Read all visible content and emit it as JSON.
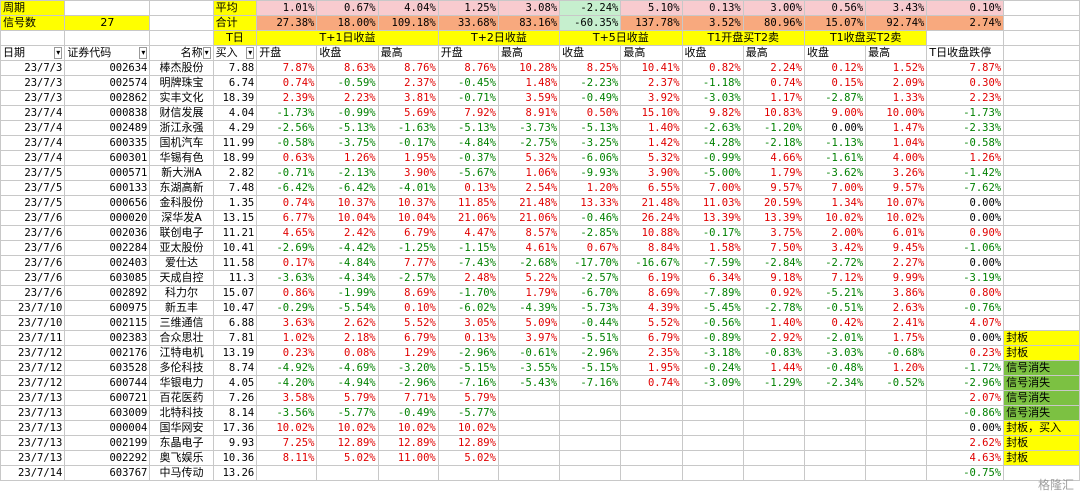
{
  "top": {
    "row1": {
      "a": "周期",
      "f": "平均",
      "vals": [
        "1.01%",
        "0.67%",
        "4.04%",
        "1.25%",
        "3.08%",
        "-2.24%",
        "5.10%",
        "0.13%",
        "3.00%",
        "0.56%",
        "3.43%",
        "0.10%"
      ]
    },
    "row2": {
      "a": "信号数",
      "b": "27",
      "f": "合计",
      "vals": [
        "27.38%",
        "18.00%",
        "109.18%",
        "33.68%",
        "83.16%",
        "-60.35%",
        "137.78%",
        "3.52%",
        "80.96%",
        "15.07%",
        "92.74%",
        "2.74%"
      ]
    },
    "row3": {
      "f": "T日",
      "groups": [
        "T+1日收益",
        "T+2日收益",
        "T+5日收益",
        "T1开盘买T2卖",
        "T1收盘买T2卖"
      ]
    }
  },
  "headers": [
    "日期",
    "证券代码",
    "名称",
    "买入",
    "开盘",
    "收盘",
    "最高",
    "开盘",
    "最高",
    "收盘",
    "最高",
    "收盘",
    "最高",
    "收盘",
    "最高",
    "T日收盘跌停"
  ],
  "rows": [
    [
      "23/7/3",
      "002634",
      "棒杰股份",
      "7.88",
      "7.87%",
      "8.63%",
      "8.76%",
      "8.76%",
      "10.28%",
      "8.25%",
      "10.41%",
      "0.82%",
      "2.24%",
      "0.12%",
      "1.52%",
      "7.87%",
      ""
    ],
    [
      "23/7/3",
      "002574",
      "明牌珠宝",
      "6.74",
      "0.74%",
      "-0.59%",
      "2.37%",
      "-0.45%",
      "1.48%",
      "-2.23%",
      "2.37%",
      "-1.18%",
      "0.74%",
      "0.15%",
      "2.09%",
      "0.30%",
      ""
    ],
    [
      "23/7/3",
      "002862",
      "实丰文化",
      "18.39",
      "2.39%",
      "2.23%",
      "3.81%",
      "-0.71%",
      "3.59%",
      "-0.49%",
      "3.92%",
      "-3.03%",
      "1.17%",
      "-2.87%",
      "1.33%",
      "2.23%",
      ""
    ],
    [
      "23/7/4",
      "000838",
      "财信发展",
      "4.04",
      "-1.73%",
      "-0.99%",
      "5.69%",
      "7.92%",
      "8.91%",
      "0.50%",
      "15.10%",
      "9.82%",
      "10.83%",
      "9.00%",
      "10.00%",
      "-1.73%",
      ""
    ],
    [
      "23/7/4",
      "002489",
      "浙江永强",
      "4.29",
      "-2.56%",
      "-5.13%",
      "-1.63%",
      "-5.13%",
      "-3.73%",
      "-5.13%",
      "1.40%",
      "-2.63%",
      "-1.20%",
      "0.00%",
      "1.47%",
      "-2.33%",
      ""
    ],
    [
      "23/7/4",
      "600335",
      "国机汽车",
      "11.99",
      "-0.58%",
      "-3.75%",
      "-0.17%",
      "-4.84%",
      "-2.75%",
      "-3.25%",
      "1.42%",
      "-4.28%",
      "-2.18%",
      "-1.13%",
      "1.04%",
      "-0.58%",
      ""
    ],
    [
      "23/7/4",
      "600301",
      "华锡有色",
      "18.99",
      "0.63%",
      "1.26%",
      "1.95%",
      "-0.37%",
      "5.32%",
      "-6.06%",
      "5.32%",
      "-0.99%",
      "4.66%",
      "-1.61%",
      "4.00%",
      "1.26%",
      ""
    ],
    [
      "23/7/5",
      "000571",
      "新大洲A",
      "2.82",
      "-0.71%",
      "-2.13%",
      "3.90%",
      "-5.67%",
      "1.06%",
      "-9.93%",
      "3.90%",
      "-5.00%",
      "1.79%",
      "-3.62%",
      "3.26%",
      "-1.42%",
      ""
    ],
    [
      "23/7/5",
      "600133",
      "东湖高新",
      "7.48",
      "-6.42%",
      "-6.42%",
      "-4.01%",
      "0.13%",
      "2.54%",
      "1.20%",
      "6.55%",
      "7.00%",
      "9.57%",
      "7.00%",
      "9.57%",
      "-7.62%",
      ""
    ],
    [
      "23/7/5",
      "000656",
      "金科股份",
      "1.35",
      "0.74%",
      "10.37%",
      "10.37%",
      "11.85%",
      "21.48%",
      "13.33%",
      "21.48%",
      "11.03%",
      "20.59%",
      "1.34%",
      "10.07%",
      "0.00%",
      ""
    ],
    [
      "23/7/6",
      "000020",
      "深华发A",
      "13.15",
      "6.77%",
      "10.04%",
      "10.04%",
      "21.06%",
      "21.06%",
      "-0.46%",
      "26.24%",
      "13.39%",
      "13.39%",
      "10.02%",
      "10.02%",
      "0.00%",
      ""
    ],
    [
      "23/7/6",
      "002036",
      "联创电子",
      "11.21",
      "4.65%",
      "2.42%",
      "6.79%",
      "4.47%",
      "8.57%",
      "-2.85%",
      "10.88%",
      "-0.17%",
      "3.75%",
      "2.00%",
      "6.01%",
      "0.90%",
      ""
    ],
    [
      "23/7/6",
      "002284",
      "亚太股份",
      "10.41",
      "-2.69%",
      "-4.42%",
      "-1.25%",
      "-1.15%",
      "4.61%",
      "0.67%",
      "8.84%",
      "1.58%",
      "7.50%",
      "3.42%",
      "9.45%",
      "-1.06%",
      ""
    ],
    [
      "23/7/6",
      "002403",
      "爱仕达",
      "11.58",
      "0.17%",
      "-4.84%",
      "7.77%",
      "-7.43%",
      "-2.68%",
      "-17.70%",
      "-16.67%",
      "-7.59%",
      "-2.84%",
      "-2.72%",
      "2.27%",
      "0.00%",
      ""
    ],
    [
      "23/7/6",
      "603085",
      "天成自控",
      "11.3",
      "-3.63%",
      "-4.34%",
      "-2.57%",
      "2.48%",
      "5.22%",
      "-2.57%",
      "6.19%",
      "6.34%",
      "9.18%",
      "7.12%",
      "9.99%",
      "-3.19%",
      ""
    ],
    [
      "23/7/6",
      "002892",
      "科力尔",
      "15.07",
      "0.86%",
      "-1.99%",
      "8.69%",
      "-1.70%",
      "1.79%",
      "-6.70%",
      "8.69%",
      "-7.89%",
      "0.92%",
      "-5.21%",
      "3.86%",
      "0.80%",
      ""
    ],
    [
      "23/7/10",
      "600975",
      "新五丰",
      "10.47",
      "-0.29%",
      "-5.54%",
      "0.10%",
      "-6.02%",
      "-4.39%",
      "-5.73%",
      "4.39%",
      "-5.45%",
      "-2.78%",
      "-0.51%",
      "2.63%",
      "-0.76%",
      ""
    ],
    [
      "23/7/10",
      "002115",
      "三维通信",
      "6.88",
      "3.63%",
      "2.62%",
      "5.52%",
      "3.05%",
      "5.09%",
      "-0.44%",
      "5.52%",
      "-0.56%",
      "1.40%",
      "0.42%",
      "2.41%",
      "4.07%",
      ""
    ],
    [
      "23/7/11",
      "002383",
      "合众思壮",
      "7.81",
      "1.02%",
      "2.18%",
      "6.79%",
      "0.13%",
      "3.97%",
      "-5.51%",
      "6.79%",
      "-0.89%",
      "2.92%",
      "-2.01%",
      "1.75%",
      "0.00%",
      "封板"
    ],
    [
      "23/7/12",
      "002176",
      "江特电机",
      "13.19",
      "0.23%",
      "0.08%",
      "1.29%",
      "-2.96%",
      "-0.61%",
      "-2.96%",
      "2.35%",
      "-3.18%",
      "-0.83%",
      "-3.03%",
      "-0.68%",
      "0.23%",
      "封板"
    ],
    [
      "23/7/12",
      "603528",
      "多伦科技",
      "8.74",
      "-4.92%",
      "-4.69%",
      "-3.20%",
      "-5.15%",
      "-3.55%",
      "-5.15%",
      "1.95%",
      "-0.24%",
      "1.44%",
      "-0.48%",
      "1.20%",
      "-1.72%",
      "信号消失"
    ],
    [
      "23/7/12",
      "600744",
      "华银电力",
      "4.05",
      "-4.20%",
      "-4.94%",
      "-2.96%",
      "-7.16%",
      "-5.43%",
      "-7.16%",
      "0.74%",
      "-3.09%",
      "-1.29%",
      "-2.34%",
      "-0.52%",
      "-2.96%",
      "信号消失"
    ],
    [
      "23/7/13",
      "600721",
      "百花医药",
      "7.26",
      "3.58%",
      "5.79%",
      "7.71%",
      "5.79%",
      "",
      "",
      "",
      "",
      "",
      "",
      "",
      "2.07%",
      "信号消失"
    ],
    [
      "23/7/13",
      "603009",
      "北特科技",
      "8.14",
      "-3.56%",
      "-5.77%",
      "-0.49%",
      "-5.77%",
      "",
      "",
      "",
      "",
      "",
      "",
      "",
      "-0.86%",
      "信号消失"
    ],
    [
      "23/7/13",
      "000004",
      "国华网安",
      "17.36",
      "10.02%",
      "10.02%",
      "10.02%",
      "10.02%",
      "",
      "",
      "",
      "",
      "",
      "",
      "",
      "0.00%",
      "封板，买入"
    ],
    [
      "23/7/13",
      "002199",
      "东晶电子",
      "9.93",
      "7.25%",
      "12.89%",
      "12.89%",
      "12.89%",
      "",
      "",
      "",
      "",
      "",
      "",
      "",
      "2.62%",
      "封板"
    ],
    [
      "23/7/13",
      "002292",
      "奥飞娱乐",
      "10.36",
      "8.11%",
      "5.02%",
      "11.00%",
      "5.02%",
      "",
      "",
      "",
      "",
      "",
      "",
      "",
      "4.63%",
      "封板"
    ],
    [
      "23/7/14",
      "603767",
      "中马传动",
      "13.26",
      "",
      "",
      "",
      "",
      "",
      "",
      "",
      "",
      "",
      "",
      "",
      "-0.75%",
      ""
    ]
  ],
  "watermark": "格隆汇",
  "colors": {
    "up": "#e00000",
    "down": "#008000",
    "header": "#ffff00",
    "avg": "#f8cbcf",
    "neg_avg": "#c6efce",
    "sum": "#f8a97e",
    "signal_gone": "#7cc142"
  }
}
